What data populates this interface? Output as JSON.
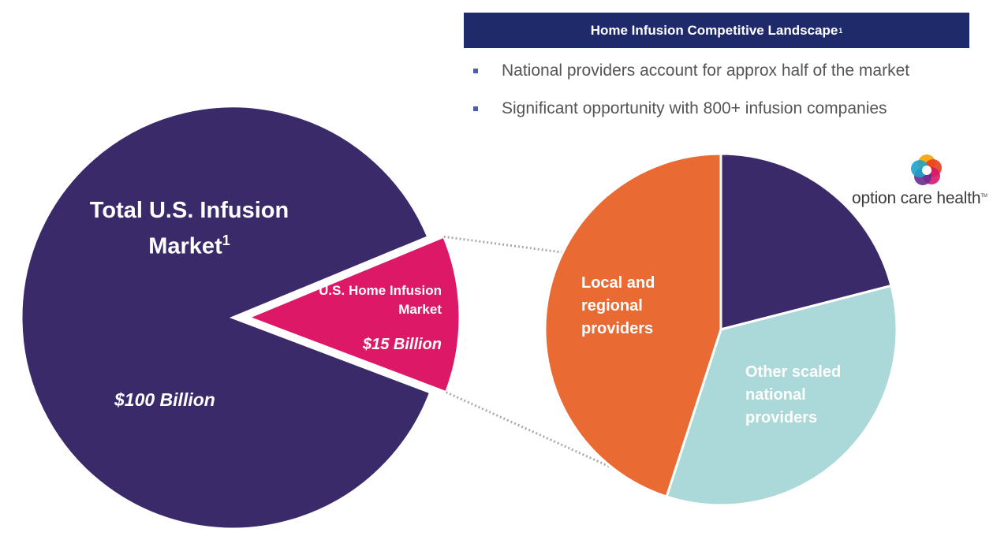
{
  "header": {
    "title": "Home Infusion Competitive Landscape",
    "footnote": "1"
  },
  "bullets": [
    "National providers account for approx half of the market",
    "Significant opportunity with 800+ infusion companies"
  ],
  "logo": {
    "text": "option care health",
    "tm": "TM",
    "icon": "option-care-flower-icon"
  },
  "colors": {
    "header_bg": "#1f2a6b",
    "purple": "#3b2a69",
    "magenta": "#dc1867",
    "orange": "#e96a33",
    "teal": "#abd8d8",
    "bullet": "#4b5cb4",
    "connector": "#aaaaaa"
  },
  "chart_data": [
    {
      "type": "pie",
      "labels": [
        "Total U.S. Infusion Market",
        "U.S. Home Infusion Market"
      ],
      "label_footnote": "1",
      "values": [
        100,
        15
      ],
      "value_labels": [
        "$100 Billion",
        "$15 Billion"
      ],
      "units": "Billion USD",
      "exploded": "U.S. Home Infusion Market"
    },
    {
      "type": "pie",
      "title": "",
      "labels": [
        "Option Care Health",
        "Other scaled national providers",
        "Local and regional providers"
      ],
      "values": [
        21,
        34,
        45
      ],
      "visible_labels": [
        "",
        "Other scaled national providers",
        "Local and regional providers"
      ]
    }
  ]
}
